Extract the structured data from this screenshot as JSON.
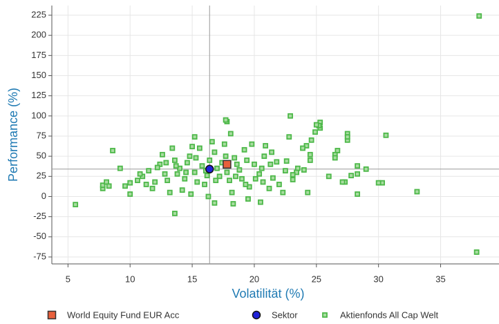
{
  "chart_data": {
    "type": "scatter",
    "x_label": "Volatilität (%)",
    "y_label": "Performance (%)",
    "xlim": [
      3.7,
      39.7
    ],
    "ylim": [
      -83.6,
      237
    ],
    "xticks": [
      5,
      10,
      15,
      20,
      25,
      30,
      35
    ],
    "yticks": [
      -75,
      -50,
      -25,
      0,
      25,
      50,
      75,
      100,
      125,
      150,
      175,
      200,
      225
    ],
    "grid": true,
    "legend": "bottom",
    "series": [
      {
        "name": "World Equity Fund EUR Acc",
        "color": "#e8603c",
        "marker": "square",
        "x": [
          17.8
        ],
        "values": [
          40
        ]
      },
      {
        "name": "Sektor",
        "color": "#1f22d8",
        "marker": "circle",
        "x": [
          16.4
        ],
        "values": [
          34
        ]
      },
      {
        "name": "Aktienfonds All Cap  Welt",
        "color": "#4cb848",
        "marker": "small-square",
        "x": [
          38.1,
          37.9,
          5.6,
          8.6,
          9.2,
          7.8,
          7.8,
          8.1,
          8.3,
          9.6,
          10,
          10,
          33.1,
          30.6,
          30.3,
          30,
          29,
          28.3,
          28.3,
          28.3,
          27.5,
          27.5,
          27.5,
          27.8,
          27.3,
          27.1,
          26.7,
          26.5,
          26.5,
          26,
          25.3,
          25.3,
          25.2,
          25,
          24.9,
          24.6,
          24.5,
          24.5,
          24.2,
          23.9,
          23.5,
          23.4,
          23.1,
          23.1,
          22.9,
          22.8,
          22.6,
          22.5,
          21.8,
          21.5,
          21.3,
          20.9,
          20.7,
          20.5,
          17.8,
          17.7,
          18.1,
          13.6,
          15.2,
          16.8,
          18.3,
          11,
          11.5,
          12,
          12.4,
          12.8,
          13.2,
          13.6,
          14,
          14.4,
          14.8,
          15.2,
          15.6,
          16,
          16.4,
          16.8,
          17.2,
          17.6,
          18,
          18.4,
          18.8,
          19.2,
          19.6,
          20,
          20.4,
          20.8,
          21.2,
          11.8,
          12.6,
          13.4,
          14.2,
          15,
          15.8,
          16.6,
          17.4,
          18.2,
          19,
          19.8,
          20.6,
          21.4,
          12.2,
          13,
          13.8,
          14.6,
          15.4,
          16.2,
          17,
          17.8,
          18.6,
          19.4,
          12.9,
          13.7,
          14.5,
          15.3,
          16.1,
          16.9,
          17.7,
          18.5,
          19.3,
          20.1,
          11.3,
          10.6,
          10.8,
          22,
          22.3,
          24,
          24.3,
          19.5,
          14.9,
          16.3
        ],
        "values": [
          224,
          -69,
          -10,
          57,
          35,
          10,
          14,
          18,
          13,
          13,
          3,
          17,
          6,
          76,
          17,
          17,
          34,
          38,
          3,
          28,
          78,
          70,
          74,
          26,
          18,
          18,
          57,
          52,
          48,
          25,
          92,
          85,
          88,
          89,
          80,
          70,
          52,
          45,
          63,
          60,
          35,
          30,
          27,
          21,
          100,
          74,
          44,
          32,
          43,
          23,
          40,
          63,
          18,
          -7,
          93,
          95,
          78,
          -21,
          74,
          -8,
          -9,
          25,
          32,
          18,
          40,
          28,
          5,
          45,
          35,
          22,
          50,
          30,
          60,
          15,
          45,
          55,
          25,
          65,
          20,
          48,
          33,
          58,
          12,
          40,
          28,
          50,
          10,
          10,
          52,
          60,
          8,
          62,
          38,
          68,
          42,
          5,
          22,
          65,
          35,
          55,
          36,
          20,
          28,
          42,
          18,
          26,
          35,
          30,
          40,
          45,
          42,
          38,
          30,
          48,
          32,
          20,
          50,
          25,
          15,
          22,
          15,
          20,
          28,
          15,
          5,
          33,
          5,
          -3,
          3,
          0
        ]
      }
    ]
  }
}
